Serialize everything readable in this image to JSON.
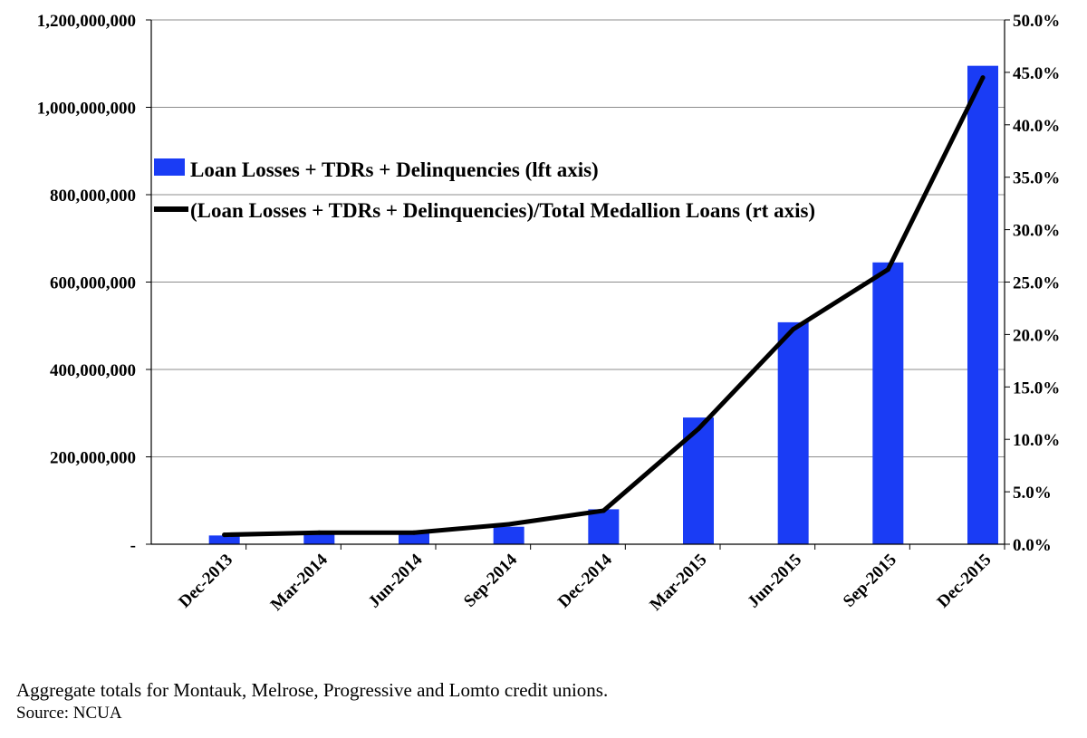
{
  "chart_data": {
    "type": "bar",
    "categories": [
      "Dec-2013",
      "Mar-2014",
      "Jun-2014",
      "Sep-2014",
      "Dec-2014",
      "Mar-2015",
      "Jun-2015",
      "Sep-2015",
      "Dec-2015"
    ],
    "series": [
      {
        "name": "Loan Losses + TDRs + Delinquencies (lft axis)",
        "type": "bar",
        "axis": "left",
        "color": "#1a3cf5",
        "values": [
          20000000,
          25000000,
          25000000,
          40000000,
          80000000,
          290000000,
          508000000,
          645000000,
          1095000000
        ]
      },
      {
        "name": "(Loan Losses + TDRs + Delinquencies)/Total Medallion Loans (rt axis)",
        "type": "line",
        "axis": "right",
        "color": "#000000",
        "values": [
          0.009,
          0.011,
          0.011,
          0.019,
          0.032,
          0.11,
          0.205,
          0.262,
          0.445
        ]
      }
    ],
    "left_axis": {
      "ylim": [
        0,
        1200000000
      ],
      "ticks": [
        0,
        200000000,
        400000000,
        600000000,
        800000000,
        1000000000,
        1200000000
      ],
      "tick_labels": [
        "-",
        "200,000,000",
        "400,000,000",
        "600,000,000",
        "800,000,000",
        "1,000,000,000",
        "1,200,000,000"
      ]
    },
    "right_axis": {
      "ylim": [
        0,
        0.5
      ],
      "ticks": [
        0,
        0.05,
        0.1,
        0.15,
        0.2,
        0.25,
        0.3,
        0.35,
        0.4,
        0.45,
        0.5
      ],
      "tick_labels": [
        "0.0%",
        "5.0%",
        "10.0%",
        "15.0%",
        "20.0%",
        "25.0%",
        "30.0%",
        "35.0%",
        "40.0%",
        "45.0%",
        "50.0%"
      ]
    },
    "grid": true,
    "legend_position": "top-left",
    "title": "",
    "xlabel": "",
    "ylabel": ""
  },
  "footer": {
    "note": "Aggregate totals for Montauk, Melrose, Progressive and Lomto credit unions.",
    "source": "Source: NCUA"
  }
}
